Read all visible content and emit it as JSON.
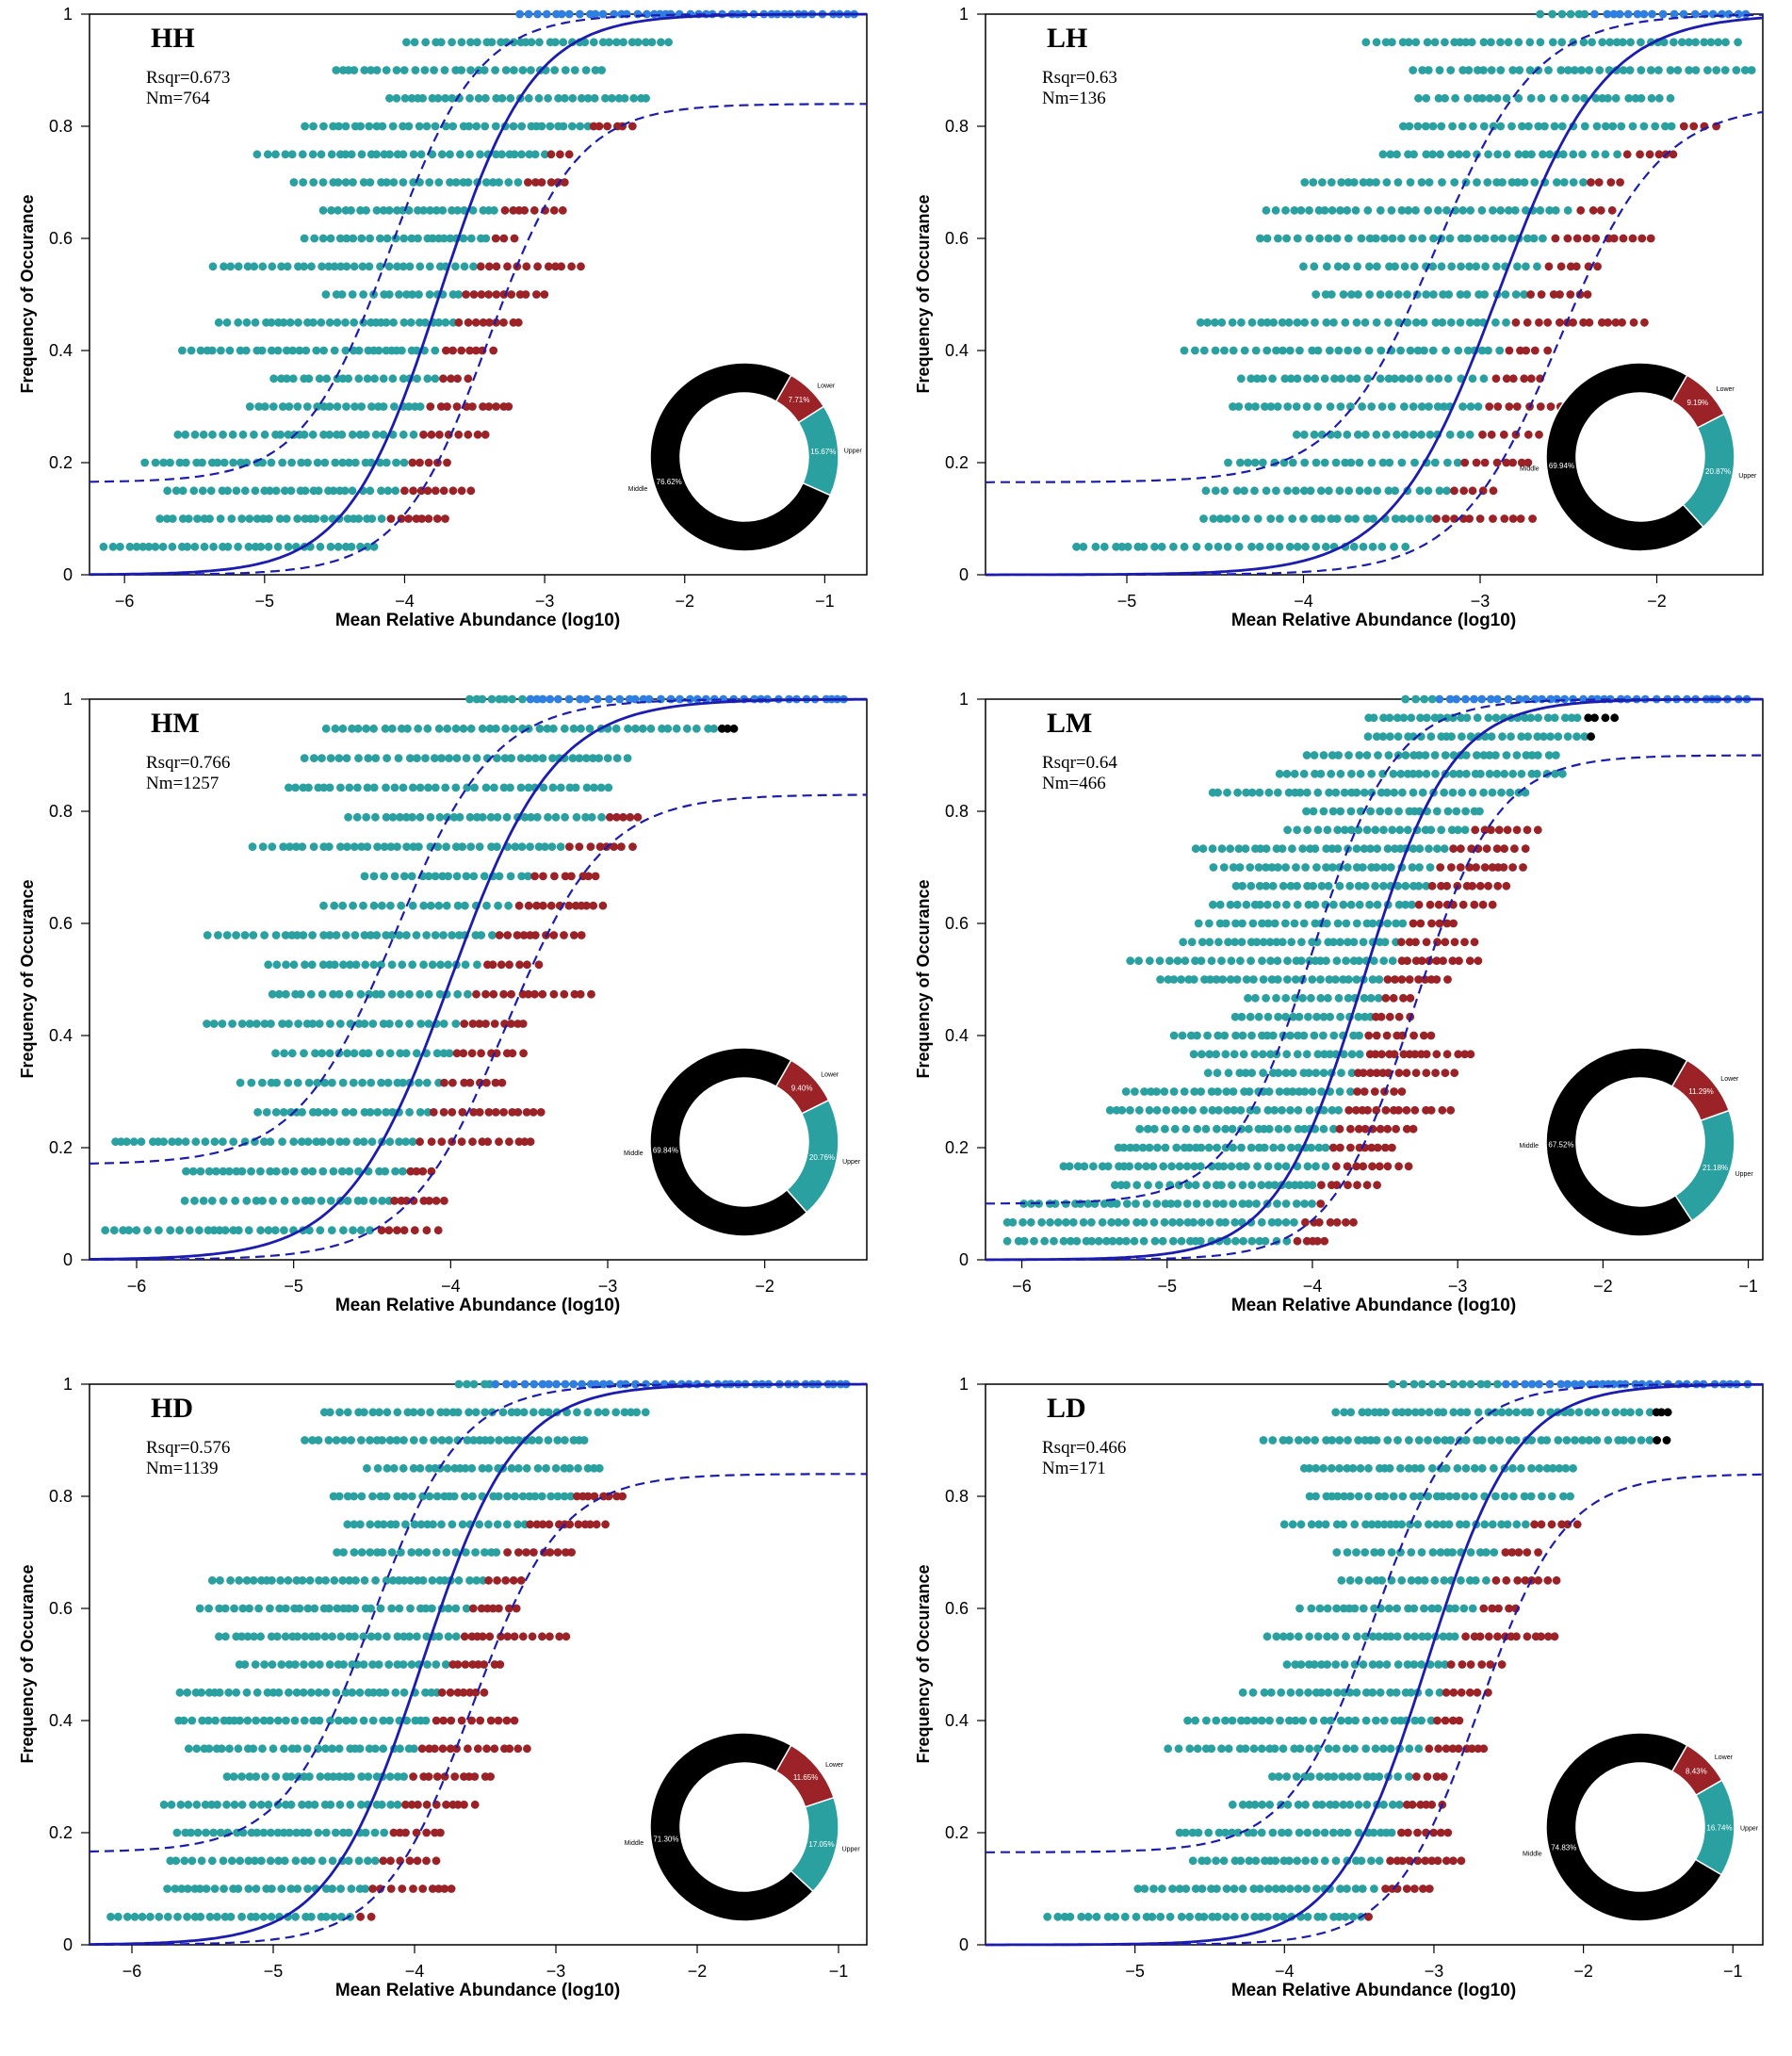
{
  "colors": {
    "middle": "#000000",
    "lower": "#9b2226",
    "upper": "#2aa0a0",
    "fit": "#1c1cb0",
    "top": "#2f7fe0"
  },
  "chart_data": [
    {
      "type": "scatter",
      "title": "HH",
      "rsqr_text": "Rsqr=0.673",
      "nm_text": "Nm=764",
      "xlabel": "Mean Relative Abundance (log10)",
      "ylabel": "Frequency of Occurance",
      "xlim": [
        -6.25,
        -0.7
      ],
      "ylim": [
        0,
        1
      ],
      "xticks": [
        -6,
        -5,
        -4,
        -3,
        -2,
        -1
      ],
      "yticks": [
        0,
        0.2,
        0.4,
        0.6,
        0.8,
        1
      ],
      "m": -3.75,
      "s": 0.33,
      "lo_max": 0.84,
      "hi_min": 0.165,
      "n_samples": 20,
      "x_min": -6.15,
      "x_max": -0.75,
      "donut": {
        "labels": [
          "Lower",
          "Upper",
          "Middle"
        ],
        "percents": [
          "7.71%",
          "15.67%",
          "76.62%"
        ],
        "values": [
          7.71,
          15.67,
          76.62
        ]
      }
    },
    {
      "type": "scatter",
      "title": "LH",
      "rsqr_text": "Rsqr=0.63",
      "nm_text": "Nm=136",
      "xlabel": "Mean Relative Abundance (log10)",
      "ylabel": "Frequency of Occurance",
      "xlim": [
        -5.8,
        -1.4
      ],
      "ylim": [
        0,
        1
      ],
      "xticks": [
        -5,
        -4,
        -3,
        -2
      ],
      "yticks": [
        0,
        0.2,
        0.4,
        0.6,
        0.8,
        1
      ],
      "m": -2.9,
      "s": 0.3,
      "lo_max": 0.84,
      "hi_min": 0.165,
      "n_samples": 20,
      "x_min": -5.8,
      "x_max": -1.45,
      "donut": {
        "labels": [
          "Lower",
          "Upper",
          "Middle"
        ],
        "percents": [
          "9.19%",
          "20.87%",
          "69.94%"
        ],
        "values": [
          9.19,
          20.87,
          69.94
        ]
      }
    },
    {
      "type": "scatter",
      "title": "HM",
      "rsqr_text": "Rsqr=0.766",
      "nm_text": "Nm=1257",
      "xlabel": "Mean Relative Abundance (log10)",
      "ylabel": "Frequency of Occurance",
      "xlim": [
        -6.3,
        -1.35
      ],
      "ylim": [
        0,
        1
      ],
      "xticks": [
        -6,
        -5,
        -4,
        -3,
        -2
      ],
      "yticks": [
        0,
        0.2,
        0.4,
        0.6,
        0.8,
        1
      ],
      "m": -4.0,
      "s": 0.33,
      "lo_max": 0.83,
      "hi_min": 0.17,
      "n_samples": 19,
      "x_min": -6.2,
      "x_max": -1.45,
      "donut": {
        "labels": [
          "Lower",
          "Upper",
          "Middle"
        ],
        "percents": [
          "9.40%",
          "20.76%",
          "69.84%"
        ],
        "values": [
          9.4,
          20.76,
          69.84
        ]
      }
    },
    {
      "type": "scatter",
      "title": "LM",
      "rsqr_text": "Rsqr=0.64",
      "nm_text": "Nm=466",
      "xlabel": "Mean Relative Abundance (log10)",
      "ylabel": "Frequency of Occurance",
      "xlim": [
        -6.25,
        -0.9
      ],
      "ylim": [
        0,
        1
      ],
      "xticks": [
        -6,
        -5,
        -4,
        -3,
        -2,
        -1
      ],
      "yticks": [
        0,
        0.2,
        0.4,
        0.6,
        0.8,
        1
      ],
      "m": -3.65,
      "s": 0.3,
      "lo_max": 0.9,
      "hi_min": 0.1,
      "n_samples": 30,
      "x_min": -6.1,
      "x_max": -0.98,
      "donut": {
        "labels": [
          "Lower",
          "Upper",
          "Middle"
        ],
        "percents": [
          "11.29%",
          "21.18%",
          "67.52%"
        ],
        "values": [
          11.29,
          21.18,
          67.52
        ]
      }
    },
    {
      "type": "scatter",
      "title": "HD",
      "rsqr_text": "Rsqr=0.576",
      "nm_text": "Nm=1139",
      "xlabel": "Mean Relative Abundance (log10)",
      "ylabel": "Frequency of Occurance",
      "xlim": [
        -6.3,
        -0.8
      ],
      "ylim": [
        0,
        1
      ],
      "xticks": [
        -6,
        -5,
        -4,
        -3,
        -2,
        -1
      ],
      "yticks": [
        0,
        0.2,
        0.4,
        0.6,
        0.8,
        1
      ],
      "m": -3.95,
      "s": 0.33,
      "lo_max": 0.84,
      "hi_min": 0.165,
      "n_samples": 20,
      "x_min": -6.15,
      "x_max": -0.9,
      "donut": {
        "labels": [
          "Lower",
          "Upper",
          "Middle"
        ],
        "percents": [
          "11.65%",
          "17.05%",
          "71.30%"
        ],
        "values": [
          11.65,
          17.05,
          71.3
        ]
      }
    },
    {
      "type": "scatter",
      "title": "LD",
      "rsqr_text": "Rsqr=0.466",
      "nm_text": "Nm=171",
      "xlabel": "Mean Relative Abundance (log10)",
      "ylabel": "Frequency of Occurance",
      "xlim": [
        -6.0,
        -0.8
      ],
      "ylim": [
        0,
        1
      ],
      "xticks": [
        -5,
        -4,
        -3,
        -2,
        -1
      ],
      "yticks": [
        0,
        0.2,
        0.4,
        0.6,
        0.8,
        1
      ],
      "m": -3.05,
      "s": 0.3,
      "lo_max": 0.84,
      "hi_min": 0.165,
      "n_samples": 20,
      "x_min": -5.9,
      "x_max": -0.9,
      "donut": {
        "labels": [
          "Lower",
          "Upper",
          "Middle"
        ],
        "percents": [
          "8.43%",
          "16.74%",
          "74.83%"
        ],
        "values": [
          8.43,
          16.74,
          74.83
        ]
      }
    }
  ]
}
